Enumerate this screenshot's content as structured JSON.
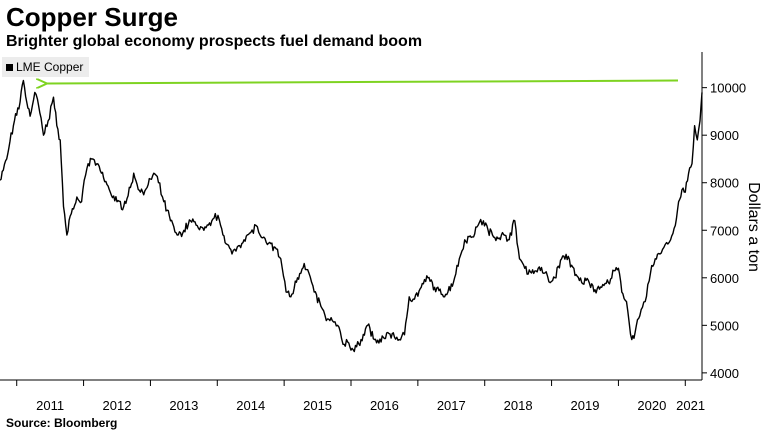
{
  "chart_data": {
    "type": "line",
    "title": "Copper Surge",
    "subtitle": "Brighter global economy prospects fuel demand boom",
    "source": "Source: Bloomberg",
    "ylabel": "Dollars a ton",
    "xlabel": "",
    "y_axis_side": "right",
    "ylim": [
      3850,
      10750
    ],
    "xlim": [
      2010.75,
      2021.25
    ],
    "yticks": [
      4000,
      5000,
      6000,
      7000,
      8000,
      9000,
      10000
    ],
    "xticks": [
      "2011",
      "2012",
      "2013",
      "2014",
      "2015",
      "2016",
      "2017",
      "2018",
      "2019",
      "2020",
      "2021"
    ],
    "grid": false,
    "legend": {
      "placement": "top-left"
    },
    "series": [
      {
        "name": "LME Copper",
        "color": "#000000",
        "points": [
          [
            2010.75,
            8050
          ],
          [
            2010.85,
            8500
          ],
          [
            2010.95,
            9200
          ],
          [
            2011.05,
            9700
          ],
          [
            2011.1,
            10150
          ],
          [
            2011.15,
            9700
          ],
          [
            2011.2,
            9400
          ],
          [
            2011.27,
            9900
          ],
          [
            2011.33,
            9600
          ],
          [
            2011.4,
            9000
          ],
          [
            2011.47,
            9300
          ],
          [
            2011.55,
            9800
          ],
          [
            2011.6,
            9200
          ],
          [
            2011.65,
            8900
          ],
          [
            2011.7,
            7500
          ],
          [
            2011.75,
            6900
          ],
          [
            2011.8,
            7300
          ],
          [
            2011.9,
            7700
          ],
          [
            2011.97,
            7600
          ],
          [
            2012.05,
            8300
          ],
          [
            2012.12,
            8500
          ],
          [
            2012.2,
            8400
          ],
          [
            2012.3,
            8100
          ],
          [
            2012.4,
            7800
          ],
          [
            2012.5,
            7600
          ],
          [
            2012.6,
            7500
          ],
          [
            2012.7,
            7900
          ],
          [
            2012.75,
            8200
          ],
          [
            2012.85,
            7800
          ],
          [
            2012.95,
            7900
          ],
          [
            2013.05,
            8200
          ],
          [
            2013.12,
            8000
          ],
          [
            2013.2,
            7600
          ],
          [
            2013.3,
            7200
          ],
          [
            2013.4,
            6900
          ],
          [
            2013.5,
            7000
          ],
          [
            2013.6,
            7200
          ],
          [
            2013.7,
            7100
          ],
          [
            2013.8,
            7000
          ],
          [
            2013.9,
            7100
          ],
          [
            2013.97,
            7350
          ],
          [
            2014.05,
            7100
          ],
          [
            2014.15,
            6700
          ],
          [
            2014.22,
            6500
          ],
          [
            2014.3,
            6650
          ],
          [
            2014.4,
            6800
          ],
          [
            2014.5,
            6950
          ],
          [
            2014.58,
            7100
          ],
          [
            2014.66,
            6850
          ],
          [
            2014.75,
            6700
          ],
          [
            2014.85,
            6650
          ],
          [
            2014.95,
            6400
          ],
          [
            2015.03,
            5700
          ],
          [
            2015.1,
            5600
          ],
          [
            2015.2,
            6000
          ],
          [
            2015.3,
            6300
          ],
          [
            2015.37,
            6100
          ],
          [
            2015.45,
            5700
          ],
          [
            2015.55,
            5400
          ],
          [
            2015.63,
            5100
          ],
          [
            2015.72,
            5100
          ],
          [
            2015.8,
            5000
          ],
          [
            2015.88,
            4600
          ],
          [
            2015.95,
            4650
          ],
          [
            2016.05,
            4450
          ],
          [
            2016.15,
            4700
          ],
          [
            2016.25,
            5000
          ],
          [
            2016.35,
            4700
          ],
          [
            2016.45,
            4650
          ],
          [
            2016.55,
            4850
          ],
          [
            2016.65,
            4750
          ],
          [
            2016.72,
            4700
          ],
          [
            2016.8,
            4800
          ],
          [
            2016.87,
            5600
          ],
          [
            2016.95,
            5550
          ],
          [
            2017.05,
            5800
          ],
          [
            2017.15,
            6000
          ],
          [
            2017.25,
            5800
          ],
          [
            2017.35,
            5650
          ],
          [
            2017.45,
            5700
          ],
          [
            2017.55,
            6000
          ],
          [
            2017.62,
            6400
          ],
          [
            2017.7,
            6800
          ],
          [
            2017.8,
            6850
          ],
          [
            2017.9,
            7100
          ],
          [
            2017.98,
            7200
          ],
          [
            2018.05,
            7000
          ],
          [
            2018.15,
            6850
          ],
          [
            2018.25,
            6900
          ],
          [
            2018.35,
            6800
          ],
          [
            2018.45,
            7200
          ],
          [
            2018.52,
            6400
          ],
          [
            2018.6,
            6200
          ],
          [
            2018.7,
            6100
          ],
          [
            2018.8,
            6200
          ],
          [
            2018.9,
            6100
          ],
          [
            2018.98,
            5900
          ],
          [
            2019.05,
            6000
          ],
          [
            2019.15,
            6400
          ],
          [
            2019.25,
            6450
          ],
          [
            2019.35,
            6050
          ],
          [
            2019.45,
            5900
          ],
          [
            2019.55,
            5950
          ],
          [
            2019.65,
            5750
          ],
          [
            2019.75,
            5800
          ],
          [
            2019.85,
            5900
          ],
          [
            2019.95,
            6150
          ],
          [
            2020.0,
            6200
          ],
          [
            2020.05,
            5700
          ],
          [
            2020.12,
            5500
          ],
          [
            2020.2,
            4700
          ],
          [
            2020.25,
            4850
          ],
          [
            2020.32,
            5200
          ],
          [
            2020.4,
            5500
          ],
          [
            2020.48,
            6100
          ],
          [
            2020.55,
            6400
          ],
          [
            2020.62,
            6500
          ],
          [
            2020.7,
            6700
          ],
          [
            2020.78,
            6800
          ],
          [
            2020.85,
            7100
          ],
          [
            2020.9,
            7600
          ],
          [
            2020.95,
            7850
          ],
          [
            2021.0,
            7800
          ],
          [
            2021.05,
            8200
          ],
          [
            2021.1,
            8400
          ],
          [
            2021.14,
            9200
          ],
          [
            2021.18,
            8900
          ],
          [
            2021.22,
            9300
          ],
          [
            2021.25,
            9900
          ]
        ]
      }
    ],
    "reference_line": {
      "value": 10150,
      "color": "#7ed321",
      "arrow_direction": "left"
    }
  }
}
